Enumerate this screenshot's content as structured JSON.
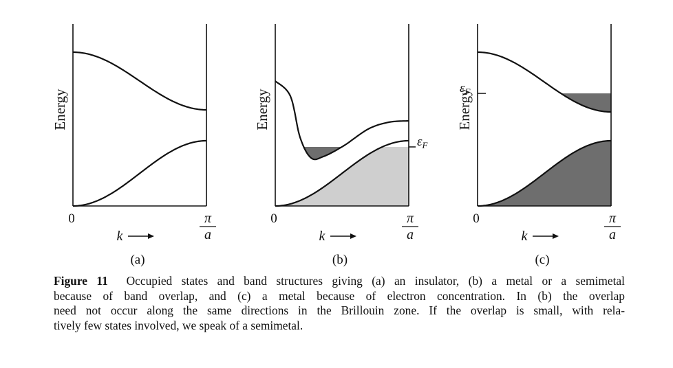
{
  "figure": {
    "panels": [
      {
        "id": "a",
        "panel_label": "(a)",
        "ylabel": "Energy",
        "origin_label": "0",
        "x_axis_label": "k",
        "x_end_numerator": "π",
        "x_end_denominator": "a",
        "fermi_label": "",
        "filling": "insulator"
      },
      {
        "id": "b",
        "panel_label": "(b)",
        "ylabel": "Energy",
        "origin_label": "0",
        "x_axis_label": "k",
        "x_end_numerator": "π",
        "x_end_denominator": "a",
        "fermi_label": "εF",
        "filling": "band-overlap"
      },
      {
        "id": "c",
        "panel_label": "(c)",
        "ylabel": "Energy",
        "origin_label": "0",
        "x_axis_label": "k",
        "x_end_numerator": "π",
        "x_end_denominator": "a",
        "fermi_label": "εF",
        "filling": "electron-concentration"
      }
    ],
    "colors": {
      "line": "#111111",
      "fill_light": "#cfcfcf",
      "fill_dark": "#6e6e6e"
    }
  },
  "caption": {
    "label": "Figure 11",
    "lines": [
      "Occupied states and band structures giving (a) an insulator, (b) a metal or a semimetal",
      "because of band overlap, and (c) a metal because of electron concentration. In (b) the overlap",
      "need not occur along the same directions in the Brillouin zone. If the overlap is small, with rela-",
      "tively few states involved, we speak of a semimetal."
    ]
  }
}
